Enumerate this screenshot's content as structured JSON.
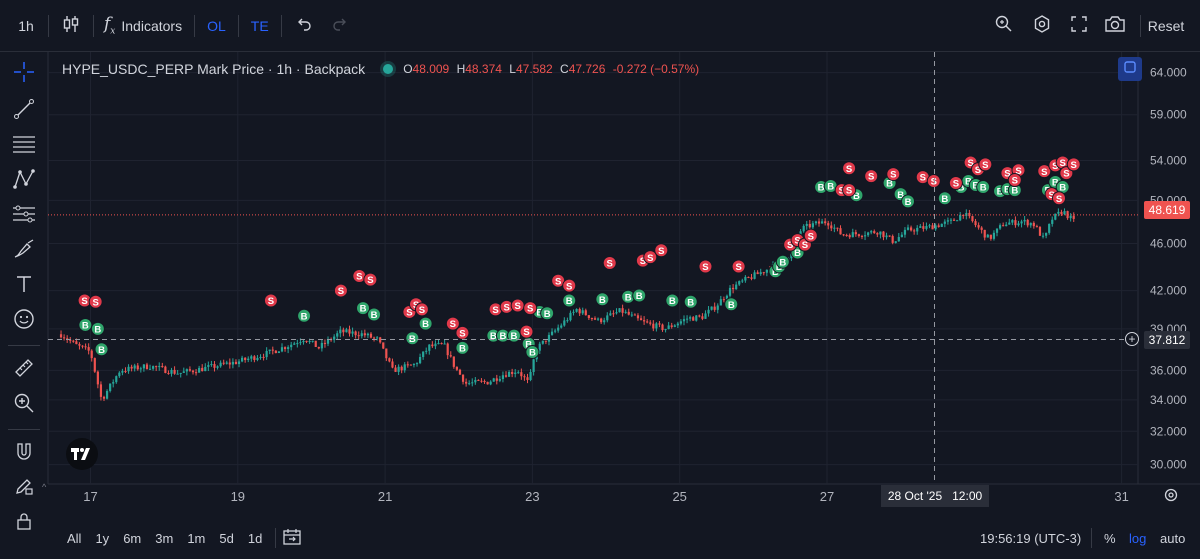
{
  "toolbar": {
    "interval": "1h",
    "indicators_label": "Indicators",
    "ol_label": "OL",
    "te_label": "TE",
    "reset_label": "Reset"
  },
  "legend": {
    "symbol": "HYPE_USDC_PERP Mark Price · 1h · Backpack",
    "open_key": "O",
    "open": "48.009",
    "high_key": "H",
    "high": "48.374",
    "low_key": "L",
    "low": "47.582",
    "close_key": "C",
    "close": "47.726",
    "change": "-0.272 (−0.57%)"
  },
  "price_axis": {
    "ticks": [
      "64.000",
      "59.000",
      "54.000",
      "50.000",
      "46.000",
      "42.000",
      "39.000",
      "36.000",
      "34.000",
      "32.000",
      "30.000"
    ],
    "last_price": "48.619",
    "crosshair_price": "37.812"
  },
  "time_axis": {
    "ticks": [
      "17",
      "19",
      "21",
      "23",
      "25",
      "27",
      "31"
    ],
    "crosshair_label": "28 Oct '25   12:00"
  },
  "marker_labels": {
    "sell": "S",
    "buy": "B"
  },
  "colors": {
    "up": "#26a69a",
    "down": "#ef5350",
    "background": "#131722",
    "accent": "#2962ff"
  },
  "ranges": [
    "All",
    "1y",
    "6m",
    "3m",
    "1m",
    "5d",
    "1d"
  ],
  "clock": "19:56:19 (UTC-3)",
  "bottom_right": {
    "percent": "%",
    "log": "log",
    "auto": "auto"
  },
  "chart_data": {
    "type": "candlestick",
    "scale": "log",
    "symbol": "HYPE_USDC_PERP",
    "interval": "1h",
    "x_ticks": [
      "17",
      "19",
      "21",
      "23",
      "25",
      "27",
      "31"
    ],
    "y_ticks": [
      64,
      59,
      54,
      50,
      46,
      42,
      39,
      36,
      34,
      32,
      30
    ],
    "ylim": [
      28.9,
      66.6
    ],
    "last_price": 48.619,
    "close_path": [
      [
        16.6,
        38.6
      ],
      [
        16.8,
        37.8
      ],
      [
        17.0,
        37.3
      ],
      [
        17.15,
        34.0
      ],
      [
        17.4,
        36.0
      ],
      [
        17.8,
        36.3
      ],
      [
        18.2,
        35.8
      ],
      [
        18.6,
        36.2
      ],
      [
        19.0,
        36.6
      ],
      [
        19.4,
        37.2
      ],
      [
        19.7,
        37.8
      ],
      [
        19.9,
        38.3
      ],
      [
        20.1,
        37.6
      ],
      [
        20.4,
        38.8
      ],
      [
        20.7,
        38.6
      ],
      [
        20.9,
        38.2
      ],
      [
        21.1,
        36.0
      ],
      [
        21.4,
        36.4
      ],
      [
        21.6,
        37.7
      ],
      [
        21.8,
        37.8
      ],
      [
        21.95,
        36.2
      ],
      [
        22.1,
        35.1
      ],
      [
        22.4,
        35.2
      ],
      [
        22.6,
        35.7
      ],
      [
        22.8,
        36.0
      ],
      [
        22.95,
        35.1
      ],
      [
        23.05,
        37.5
      ],
      [
        23.3,
        38.8
      ],
      [
        23.6,
        40.5
      ],
      [
        23.9,
        39.6
      ],
      [
        24.2,
        40.4
      ],
      [
        24.5,
        39.5
      ],
      [
        24.8,
        39.0
      ],
      [
        25.1,
        39.8
      ],
      [
        25.3,
        39.9
      ],
      [
        25.5,
        40.8
      ],
      [
        25.7,
        42.2
      ],
      [
        25.9,
        42.9
      ],
      [
        26.2,
        43.8
      ],
      [
        26.5,
        44.7
      ],
      [
        26.65,
        47.3
      ],
      [
        26.8,
        47.7
      ],
      [
        27.0,
        48.0
      ],
      [
        27.2,
        46.8
      ],
      [
        27.5,
        46.9
      ],
      [
        27.7,
        47.1
      ],
      [
        27.9,
        46.2
      ],
      [
        28.1,
        47.2
      ],
      [
        28.4,
        47.5
      ],
      [
        28.7,
        48.0
      ],
      [
        28.85,
        48.8
      ],
      [
        29.0,
        47.8
      ],
      [
        29.2,
        46.4
      ],
      [
        29.4,
        47.8
      ],
      [
        29.65,
        48.0
      ],
      [
        29.8,
        47.8
      ],
      [
        29.95,
        46.3
      ],
      [
        30.05,
        48.2
      ],
      [
        30.2,
        49.0
      ],
      [
        30.35,
        48.0
      ]
    ],
    "markers": {
      "sell": [
        [
          16.92,
          41.2
        ],
        [
          17.07,
          41.1
        ],
        [
          19.45,
          41.2
        ],
        [
          20.4,
          42.0
        ],
        [
          20.65,
          43.2
        ],
        [
          20.8,
          42.9
        ],
        [
          21.33,
          40.3
        ],
        [
          21.42,
          40.9
        ],
        [
          21.5,
          40.5
        ],
        [
          21.92,
          39.4
        ],
        [
          22.05,
          38.7
        ],
        [
          22.5,
          40.5
        ],
        [
          22.65,
          40.7
        ],
        [
          22.8,
          40.8
        ],
        [
          22.92,
          38.8
        ],
        [
          22.97,
          40.6
        ],
        [
          23.35,
          42.8
        ],
        [
          23.5,
          42.4
        ],
        [
          24.05,
          44.3
        ],
        [
          24.5,
          44.5
        ],
        [
          24.6,
          44.8
        ],
        [
          24.75,
          45.4
        ],
        [
          25.35,
          44.0
        ],
        [
          25.8,
          44.0
        ],
        [
          26.5,
          45.9
        ],
        [
          26.6,
          46.3
        ],
        [
          26.7,
          45.9
        ],
        [
          26.78,
          46.7
        ],
        [
          27.2,
          51.0
        ],
        [
          27.3,
          51.0
        ],
        [
          27.3,
          53.2
        ],
        [
          27.6,
          52.4
        ],
        [
          27.9,
          52.6
        ],
        [
          28.3,
          52.3
        ],
        [
          28.45,
          51.9
        ],
        [
          28.75,
          51.7
        ],
        [
          28.95,
          53.8
        ],
        [
          29.05,
          53.1
        ],
        [
          29.15,
          53.6
        ],
        [
          29.45,
          52.7
        ],
        [
          29.6,
          53.0
        ],
        [
          29.95,
          52.9
        ],
        [
          30.1,
          53.5
        ],
        [
          30.2,
          53.8
        ],
        [
          30.25,
          52.7
        ],
        [
          30.35,
          53.6
        ],
        [
          30.05,
          50.6
        ],
        [
          29.55,
          52.0
        ],
        [
          30.15,
          50.2
        ]
      ],
      "buy": [
        [
          16.93,
          39.3
        ],
        [
          17.1,
          39.0
        ],
        [
          17.15,
          37.5
        ],
        [
          19.9,
          40.0
        ],
        [
          20.7,
          40.6
        ],
        [
          20.85,
          40.1
        ],
        [
          21.37,
          38.3
        ],
        [
          21.55,
          39.4
        ],
        [
          22.05,
          37.6
        ],
        [
          22.47,
          38.5
        ],
        [
          22.6,
          38.5
        ],
        [
          22.75,
          38.5
        ],
        [
          22.95,
          37.9
        ],
        [
          23.0,
          37.3
        ],
        [
          23.1,
          40.3
        ],
        [
          23.2,
          40.2
        ],
        [
          23.5,
          41.2
        ],
        [
          23.95,
          41.3
        ],
        [
          24.3,
          41.5
        ],
        [
          24.45,
          41.6
        ],
        [
          24.9,
          41.2
        ],
        [
          25.15,
          41.1
        ],
        [
          25.7,
          40.9
        ],
        [
          26.3,
          43.6
        ],
        [
          26.35,
          44.0
        ],
        [
          26.4,
          44.4
        ],
        [
          26.6,
          45.2
        ],
        [
          26.92,
          51.3
        ],
        [
          27.05,
          51.4
        ],
        [
          27.4,
          50.5
        ],
        [
          27.85,
          51.7
        ],
        [
          28.0,
          50.6
        ],
        [
          28.1,
          49.9
        ],
        [
          28.6,
          50.2
        ],
        [
          28.82,
          51.3
        ],
        [
          28.92,
          51.9
        ],
        [
          29.02,
          51.5
        ],
        [
          29.12,
          51.3
        ],
        [
          29.35,
          50.9
        ],
        [
          29.45,
          51.1
        ],
        [
          29.55,
          51.0
        ],
        [
          30.0,
          51.0
        ],
        [
          30.1,
          51.8
        ],
        [
          30.2,
          51.3
        ]
      ]
    }
  }
}
